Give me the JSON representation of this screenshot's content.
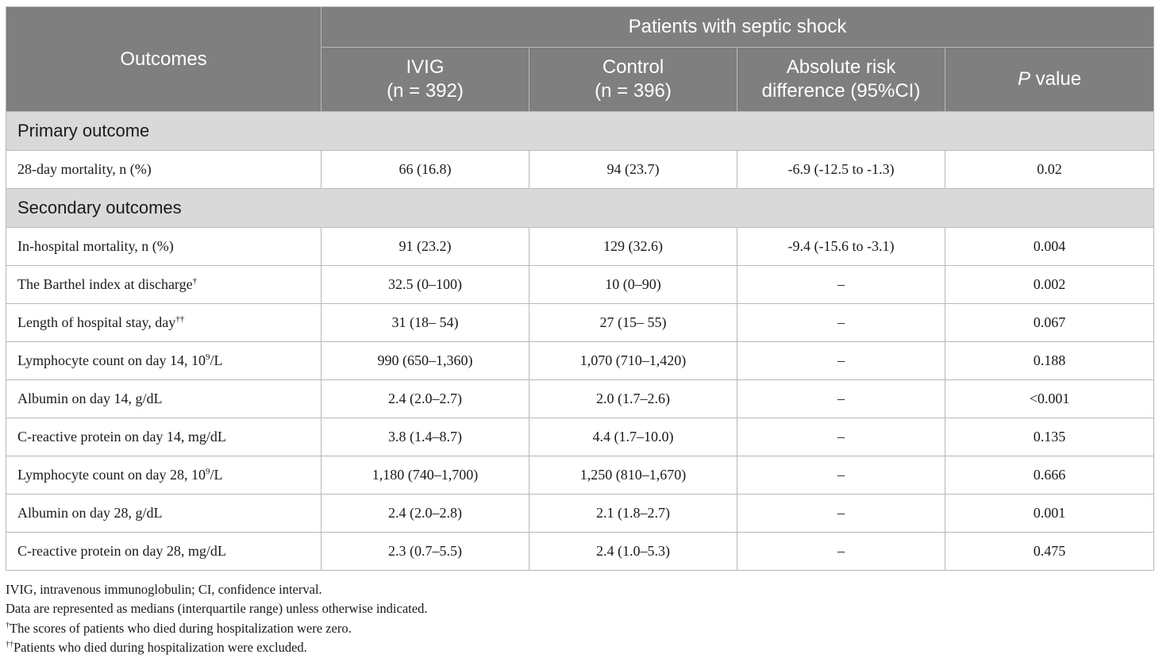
{
  "table": {
    "group_header": "Patients with septic shock",
    "col_outcomes": "Outcomes",
    "col_ivig": {
      "line1": "IVIG",
      "line2": "(n = 392)"
    },
    "col_control": {
      "line1": "Control",
      "line2": "(n = 396)"
    },
    "col_ard": {
      "line1": "Absolute risk",
      "line2": "difference (95%CI)"
    },
    "col_p": {
      "italic": "P",
      "rest": " value"
    },
    "primary_section": "Primary outcome",
    "primary_rows": [
      {
        "label": "28-day mortality, n (%)",
        "sup": "",
        "tail": "",
        "ivig": "66 (16.8)",
        "control": "94 (23.7)",
        "ard": "-6.9 (-12.5 to -1.3)",
        "p": "0.02"
      }
    ],
    "secondary_section": "Secondary outcomes",
    "secondary_rows": [
      {
        "label": "In-hospital mortality, n (%)",
        "sup": "",
        "tail": "",
        "ivig": "91 (23.2)",
        "control": "129 (32.6)",
        "ard": "-9.4 (-15.6 to -3.1)",
        "p": "0.004"
      },
      {
        "label": "The Barthel index at discharge",
        "sup": "†",
        "tail": "",
        "ivig": "32.5 (0–100)",
        "control": "10 (0–90)",
        "ard": "–",
        "p": "0.002"
      },
      {
        "label": "Length of hospital stay, day",
        "sup": "††",
        "tail": "",
        "ivig": "31 (18– 54)",
        "control": "27 (15– 55)",
        "ard": "–",
        "p": "0.067"
      },
      {
        "label": "Lymphocyte count on day 14, 10",
        "sup": "9",
        "tail": "/L",
        "ivig": "990 (650–1,360)",
        "control": "1,070 (710–1,420)",
        "ard": "–",
        "p": "0.188"
      },
      {
        "label": "Albumin on day 14, g/dL",
        "sup": "",
        "tail": "",
        "ivig": "2.4 (2.0–2.7)",
        "control": "2.0 (1.7–2.6)",
        "ard": "–",
        "p": "<0.001"
      },
      {
        "label": "C-reactive protein on day 14, mg/dL",
        "sup": "",
        "tail": "",
        "ivig": "3.8 (1.4–8.7)",
        "control": "4.4 (1.7–10.0)",
        "ard": "–",
        "p": "0.135"
      },
      {
        "label": "Lymphocyte count on day 28, 10",
        "sup": "9",
        "tail": "/L",
        "ivig": "1,180 (740–1,700)",
        "control": "1,250 (810–1,670)",
        "ard": "–",
        "p": "0.666"
      },
      {
        "label": "Albumin on day 28, g/dL",
        "sup": "",
        "tail": "",
        "ivig": "2.4 (2.0–2.8)",
        "control": "2.1 (1.8–2.7)",
        "ard": "–",
        "p": "0.001"
      },
      {
        "label": "C-reactive protein on day 28, mg/dL",
        "sup": "",
        "tail": "",
        "ivig": "2.3 (0.7–5.5)",
        "control": "2.4 (1.0–5.3)",
        "ard": "–",
        "p": "0.475"
      }
    ]
  },
  "footnotes": {
    "abbrev": "IVIG, intravenous immunoglobulin; CI, confidence interval.",
    "data_note": "Data are represented as medians (interquartile range) unless otherwise indicated.",
    "note1": {
      "mark": "†",
      "text": "The scores of patients who died during hospitalization were zero."
    },
    "note2": {
      "mark": "††",
      "text": "Patients who died during hospitalization were excluded."
    }
  },
  "colors": {
    "header_bg": "#7f7f7f",
    "section_bg": "#d9d9d9",
    "border": "#b8b8b8"
  }
}
